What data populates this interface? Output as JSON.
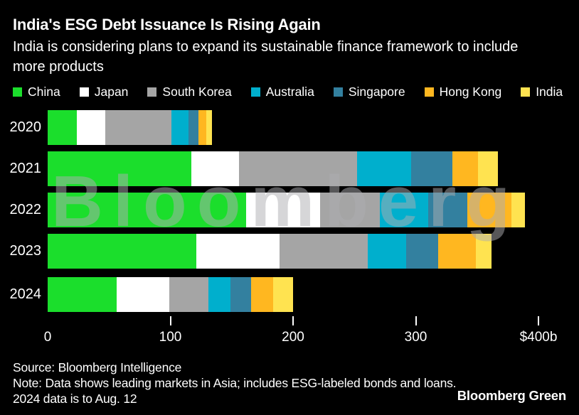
{
  "header": {
    "title": "India's ESG Debt Issuance Is Rising Again",
    "subtitle": "India is considering plans to expand its sustainable finance framework to include more products"
  },
  "watermark": "Bloomberg",
  "chart_data": {
    "type": "bar",
    "orientation": "horizontal",
    "stacked": true,
    "unit": "$ billions",
    "categories": [
      "2020",
      "2021",
      "2022",
      "2023",
      "2024"
    ],
    "series": [
      {
        "name": "China",
        "color": "#1BDE2C",
        "values": [
          24,
          117,
          162,
          121,
          56
        ]
      },
      {
        "name": "Japan",
        "color": "#FFFFFF",
        "values": [
          23,
          39,
          60,
          68,
          43
        ]
      },
      {
        "name": "South Korea",
        "color": "#A5A5A5",
        "values": [
          54,
          96,
          49,
          72,
          32
        ]
      },
      {
        "name": "Australia",
        "color": "#00AFCD",
        "values": [
          14,
          44,
          39,
          31,
          18
        ]
      },
      {
        "name": "Singapore",
        "color": "#33809F",
        "values": [
          8,
          34,
          32,
          26,
          17
        ]
      },
      {
        "name": "Hong Kong",
        "color": "#FFB720",
        "values": [
          6,
          21,
          36,
          31,
          18
        ]
      },
      {
        "name": "India",
        "color": "#FFE350",
        "values": [
          5,
          16,
          11,
          13,
          16
        ]
      }
    ],
    "totals": [
      134,
      367,
      389,
      362,
      200
    ],
    "xlim": [
      0,
      400
    ],
    "x_ticks": [
      {
        "value": 0,
        "label": "0",
        "tick_mark": false
      },
      {
        "value": 100,
        "label": "100",
        "tick_mark": true
      },
      {
        "value": 200,
        "label": "200",
        "tick_mark": true
      },
      {
        "value": 300,
        "label": "300",
        "tick_mark": true
      },
      {
        "value": 400,
        "label": "$400b",
        "tick_mark": true
      }
    ],
    "grid": false,
    "legend_position": "top",
    "background_color": "#000000",
    "text_color": "#FFFFFF"
  },
  "footer": {
    "source": "Source: Bloomberg Intelligence",
    "note": "Note: Data shows leading markets in Asia; includes ESG-labeled bonds and loans.",
    "note2": "2024 data is to Aug. 12",
    "brand": "Bloomberg Green"
  }
}
